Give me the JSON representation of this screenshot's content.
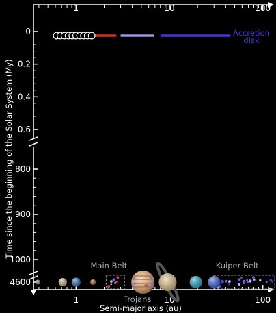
{
  "chart_data": {
    "type": "scatter",
    "title": "",
    "xlabel": "Semi-major axis (au)",
    "ylabel": "Time since the beginning of the Solar System (My)",
    "x_scale": "log",
    "xlim": [
      0.35,
      115
    ],
    "x_ticks": [
      {
        "value": 1,
        "label": "1"
      },
      {
        "value": 10,
        "label": "10"
      },
      {
        "value": 100,
        "label": "100"
      }
    ],
    "y_axis_segments": [
      {
        "range": [
          0,
          0.6
        ],
        "ticks": [
          {
            "value": 0,
            "label": "0"
          },
          {
            "value": 0.2,
            "label": "0.2"
          },
          {
            "value": 0.4,
            "label": "0.4"
          },
          {
            "value": 0.6,
            "label": "0.6"
          }
        ]
      },
      {
        "range": [
          800,
          1000
        ],
        "ticks": [
          {
            "value": 800,
            "label": "800"
          },
          {
            "value": 900,
            "label": "900"
          },
          {
            "value": 1000,
            "label": "1000"
          }
        ]
      },
      {
        "range": [
          4600,
          4600
        ],
        "ticks": [
          {
            "value": 4600,
            "label": "4600"
          }
        ]
      }
    ],
    "axis_breaks": [
      "y"
    ],
    "grid": false,
    "time_0": {
      "embryos_au": [
        0.62,
        0.68,
        0.75,
        0.83,
        0.91,
        1.0,
        1.1,
        1.21,
        1.33,
        1.47
      ],
      "disk_segments": [
        {
          "x": [
            1.5,
            2.7
          ],
          "color": "#cc3322"
        },
        {
          "x": [
            3.0,
            6.8
          ],
          "color": "#9a96e2"
        },
        {
          "x": [
            8.0,
            45
          ],
          "color": "#4a36d6"
        }
      ],
      "annotation": {
        "text_line1": "Accretion",
        "text_line2": "disk",
        "color": "#4a36d6"
      }
    },
    "time_4600": {
      "bodies": [
        {
          "name": "Mercury",
          "a": 0.39,
          "r": 3.5,
          "color": "#8a8a88"
        },
        {
          "name": "Venus",
          "a": 0.72,
          "r": 6,
          "color": "#d8c28a"
        },
        {
          "name": "Earth",
          "a": 1.0,
          "r": 6.5,
          "color": "#3a6fb8"
        },
        {
          "name": "Mars",
          "a": 1.52,
          "r": 4,
          "color": "#c46a3c"
        },
        {
          "name": "Jupiter",
          "a": 5.2,
          "r": 17,
          "color": "#d7b791"
        },
        {
          "name": "Saturn",
          "a": 9.58,
          "r": 13,
          "color": "#d9c49c"
        },
        {
          "name": "Uranus",
          "a": 19.2,
          "r": 9,
          "color": "#2cb0d6"
        },
        {
          "name": "Neptune",
          "a": 30.1,
          "r": 9,
          "color": "#3f66de"
        }
      ],
      "regions": [
        {
          "name": "Main Belt",
          "x": [
            2.1,
            3.3
          ],
          "color": "#aaaaaa"
        },
        {
          "name": "Kuiper Belt",
          "x": [
            30,
            50
          ],
          "color": "#aaaaaa"
        },
        {
          "name": "Trojans",
          "x": [
            5.2,
            5.2
          ],
          "color": "#aaaaaa"
        }
      ]
    }
  }
}
